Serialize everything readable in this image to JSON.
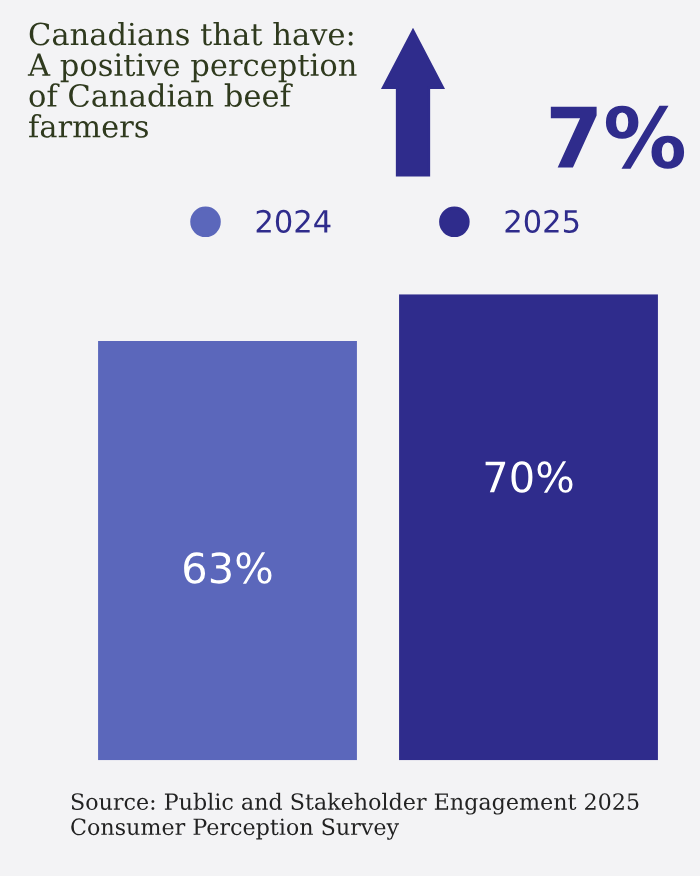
{
  "chart_data": {
    "type": "bar",
    "title": "Canadians that have:\nA positive perception\nof Canadian beef\nfarmers",
    "categories": [
      null
    ],
    "series": [
      {
        "name": "2024",
        "color": "#5b67bb",
        "values": [
          63
        ],
        "value_labels": [
          "63%"
        ]
      },
      {
        "name": "2025",
        "color": "#2f2c8c",
        "values": [
          70
        ],
        "value_labels": [
          "70%"
        ]
      }
    ],
    "legend": "top",
    "grid": false,
    "annotations": [
      "7%",
      "Source: Public and Stakeholder Engagement 2025\nConsumer Perception Survey"
    ]
  }
}
